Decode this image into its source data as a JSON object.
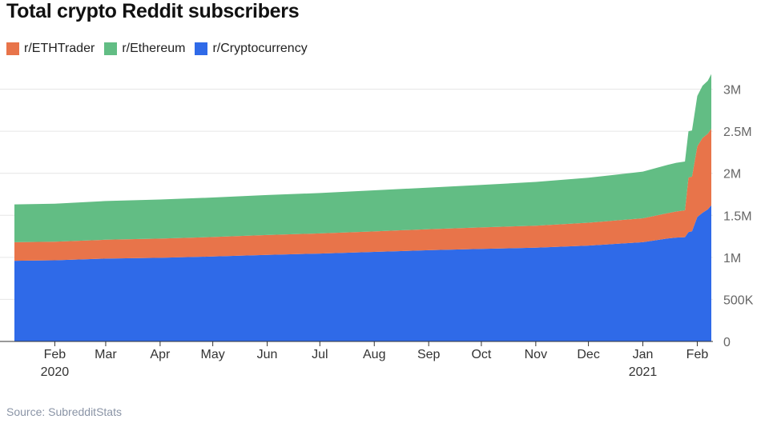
{
  "chart_data": {
    "type": "area",
    "stacked": true,
    "title": "Total crypto Reddit subscribers",
    "source": "Source: SubredditStats",
    "x": [
      "2020-01-09",
      "2020-02-01",
      "2020-03-01",
      "2020-04-01",
      "2020-05-01",
      "2020-06-01",
      "2020-07-01",
      "2020-08-01",
      "2020-09-01",
      "2020-10-01",
      "2020-11-01",
      "2020-12-01",
      "2021-01-01",
      "2021-01-15",
      "2021-01-20",
      "2021-01-25",
      "2021-01-27",
      "2021-01-29",
      "2021-02-01",
      "2021-02-04",
      "2021-02-07",
      "2021-02-09"
    ],
    "series": [
      {
        "name": "r/Cryptocurrency",
        "color": "#2f6ae8",
        "values": [
          960000,
          965000,
          985000,
          995000,
          1010000,
          1030000,
          1045000,
          1065000,
          1085000,
          1100000,
          1115000,
          1140000,
          1180000,
          1225000,
          1235000,
          1240000,
          1300000,
          1310000,
          1480000,
          1530000,
          1570000,
          1620000
        ]
      },
      {
        "name": "r/ETHTrader",
        "color": "#e8744a",
        "values": [
          220000,
          222000,
          225000,
          228000,
          232000,
          236000,
          240000,
          244000,
          250000,
          256000,
          262000,
          272000,
          285000,
          300000,
          310000,
          320000,
          650000,
          650000,
          840000,
          890000,
          900000,
          910000
        ]
      },
      {
        "name": "r/Ethereum",
        "color": "#62bd84",
        "values": [
          450000,
          452000,
          460000,
          465000,
          470000,
          475000,
          480000,
          488000,
          495000,
          505000,
          520000,
          535000,
          555000,
          575000,
          580000,
          580000,
          550000,
          550000,
          600000,
          620000,
          630000,
          650000
        ]
      }
    ],
    "xlim": [
      "2020-01-09",
      "2021-02-09"
    ],
    "ylim": [
      0,
      3300000
    ],
    "y_ticks": [
      0,
      500000,
      1000000,
      1500000,
      2000000,
      2500000,
      3000000
    ],
    "y_tick_labels": [
      "0",
      "500K",
      "1M",
      "1.5M",
      "2M",
      "2.5M",
      "3M"
    ],
    "x_ticks": [
      "2020-02-01",
      "2020-03-01",
      "2020-04-01",
      "2020-05-01",
      "2020-06-01",
      "2020-07-01",
      "2020-08-01",
      "2020-09-01",
      "2020-10-01",
      "2020-11-01",
      "2020-12-01",
      "2021-01-01",
      "2021-02-01"
    ],
    "x_tick_labels": [
      "Feb",
      "Mar",
      "Apr",
      "May",
      "Jun",
      "Jul",
      "Aug",
      "Sep",
      "Oct",
      "Nov",
      "Dec",
      "Jan",
      "Feb"
    ],
    "year_labels": [
      {
        "at": "2020-02-01",
        "label": "2020"
      },
      {
        "at": "2021-01-01",
        "label": "2021"
      }
    ],
    "legend_order": [
      "r/ETHTrader",
      "r/Ethereum",
      "r/Cryptocurrency"
    ],
    "legend_position": "top-left",
    "y_axis_position": "right",
    "grid": true,
    "colors": {
      "grid": "#e6e6e6",
      "axis": "#333333"
    }
  }
}
